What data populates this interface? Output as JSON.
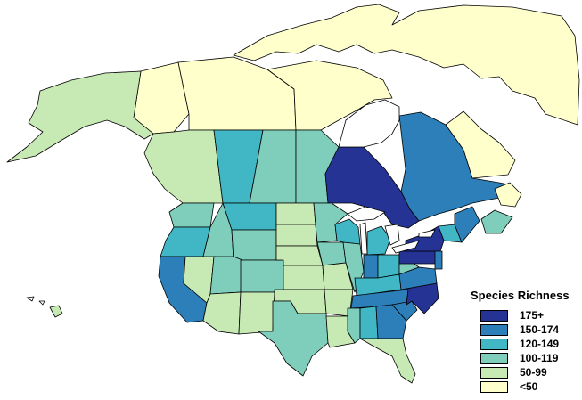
{
  "legend": {
    "title": "Species Richness",
    "items": [
      {
        "label": "175+",
        "color": "#253494"
      },
      {
        "label": "150-174",
        "color": "#2c7fb8"
      },
      {
        "label": "120-149",
        "color": "#41b6c4"
      },
      {
        "label": "100-119",
        "color": "#7fcdbb"
      },
      {
        "label": "50-99",
        "color": "#c7e9b4"
      },
      {
        "label": "<50",
        "color": "#ffffcc"
      }
    ]
  },
  "regions": [
    {
      "id": "ontario",
      "class": "175+"
    },
    {
      "id": "quebec",
      "class": "150-174"
    },
    {
      "id": "newfoundland-labrador",
      "class": "<50"
    },
    {
      "id": "nunavut",
      "class": "<50"
    },
    {
      "id": "northwest-territories",
      "class": "<50"
    },
    {
      "id": "yukon",
      "class": "<50"
    },
    {
      "id": "alaska",
      "class": "50-99"
    },
    {
      "id": "british-columbia",
      "class": "50-99"
    },
    {
      "id": "alberta",
      "class": "120-149"
    },
    {
      "id": "saskatchewan",
      "class": "100-119"
    },
    {
      "id": "manitoba",
      "class": "100-119"
    },
    {
      "id": "maritimes",
      "class": "100-119"
    },
    {
      "id": "washington",
      "class": "100-119"
    },
    {
      "id": "oregon",
      "class": "120-149"
    },
    {
      "id": "california",
      "class": "150-174"
    },
    {
      "id": "nevada",
      "class": "50-99"
    },
    {
      "id": "idaho",
      "class": "100-119"
    },
    {
      "id": "montana",
      "class": "120-149"
    },
    {
      "id": "wyoming",
      "class": "100-119"
    },
    {
      "id": "utah",
      "class": "100-119"
    },
    {
      "id": "arizona",
      "class": "50-99"
    },
    {
      "id": "colorado",
      "class": "100-119"
    },
    {
      "id": "new-mexico",
      "class": "50-99"
    },
    {
      "id": "north-dakota",
      "class": "50-99"
    },
    {
      "id": "south-dakota",
      "class": "50-99"
    },
    {
      "id": "nebraska",
      "class": "50-99"
    },
    {
      "id": "kansas",
      "class": "50-99"
    },
    {
      "id": "oklahoma",
      "class": "50-99"
    },
    {
      "id": "texas",
      "class": "100-119"
    },
    {
      "id": "minnesota",
      "class": "100-119"
    },
    {
      "id": "iowa",
      "class": "100-119"
    },
    {
      "id": "missouri",
      "class": "50-99"
    },
    {
      "id": "arkansas",
      "class": "50-99"
    },
    {
      "id": "louisiana",
      "class": "50-99"
    },
    {
      "id": "wisconsin",
      "class": "120-149"
    },
    {
      "id": "illinois",
      "class": "100-119"
    },
    {
      "id": "michigan",
      "class": "120-149"
    },
    {
      "id": "indiana",
      "class": "150-174"
    },
    {
      "id": "ohio",
      "class": "120-149"
    },
    {
      "id": "kentucky",
      "class": "120-149"
    },
    {
      "id": "tennessee",
      "class": "150-174"
    },
    {
      "id": "mississippi",
      "class": "100-119"
    },
    {
      "id": "alabama",
      "class": "120-149"
    },
    {
      "id": "georgia",
      "class": "150-174"
    },
    {
      "id": "florida",
      "class": "50-99"
    },
    {
      "id": "north-carolina",
      "class": "175+"
    },
    {
      "id": "south-carolina",
      "class": "150-174"
    },
    {
      "id": "virginia",
      "class": "150-174"
    },
    {
      "id": "west-virginia",
      "class": "100-119"
    },
    {
      "id": "pennsylvania",
      "class": "175+"
    },
    {
      "id": "new-york",
      "class": "175+"
    },
    {
      "id": "new-jersey",
      "class": "150-174"
    },
    {
      "id": "maine",
      "class": "150-174"
    },
    {
      "id": "new-england",
      "class": "120-149"
    },
    {
      "id": "hawaii",
      "class": "50-99"
    }
  ]
}
